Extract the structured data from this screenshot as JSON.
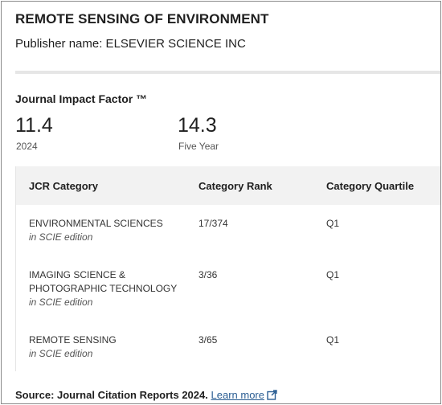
{
  "journal": {
    "title": "REMOTE SENSING OF ENVIRONMENT",
    "publisher_label": "Publisher name: ELSEVIER SCIENCE INC"
  },
  "impact_factor": {
    "heading": "Journal Impact Factor ™",
    "value": "11.4",
    "year": "2024",
    "five_year_value": "14.3",
    "five_year_label": "Five Year"
  },
  "category_table": {
    "headers": {
      "category": "JCR Category",
      "rank": "Category Rank",
      "quartile": "Category Quartile"
    },
    "rows": [
      {
        "category": "ENVIRONMENTAL SCIENCES",
        "edition": "in SCIE edition",
        "rank": "17/374",
        "quartile": "Q1"
      },
      {
        "category": "IMAGING SCIENCE & PHOTOGRAPHIC TECHNOLOGY",
        "edition": "in SCIE edition",
        "rank": "3/36",
        "quartile": "Q1"
      },
      {
        "category": "REMOTE SENSING",
        "edition": "in SCIE edition",
        "rank": "3/65",
        "quartile": "Q1"
      }
    ]
  },
  "footer": {
    "source_label": "Source: Journal Citation Reports",
    "source_year": "2024.",
    "learn_more": "Learn more",
    "external_icon": "external-link-icon"
  },
  "colors": {
    "link": "#2b5e93",
    "header_bg": "#f2f2f2"
  }
}
